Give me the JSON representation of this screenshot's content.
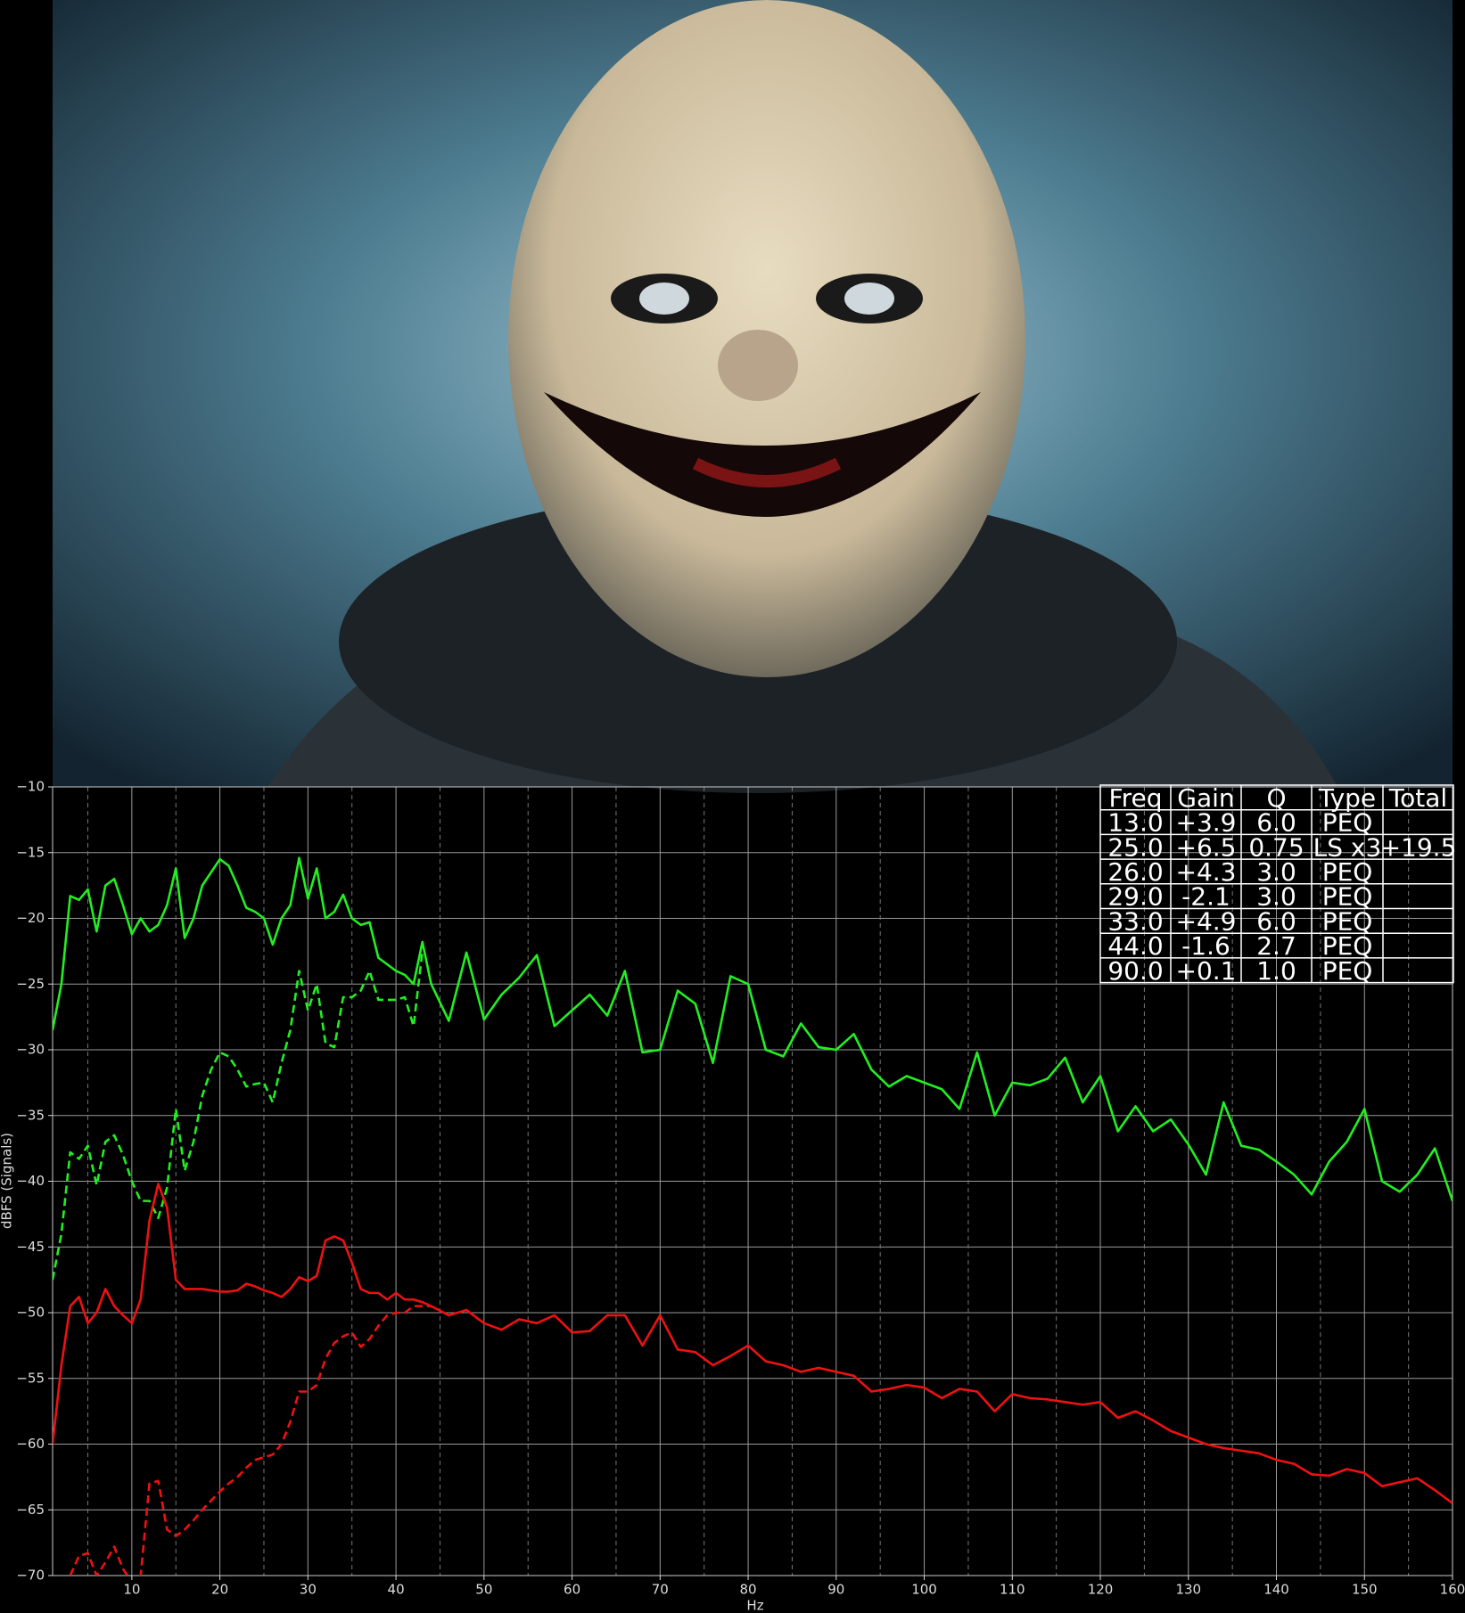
{
  "chart_data": {
    "type": "line",
    "xlabel": "Hz",
    "ylabel": "dBFS (Signals)",
    "xlim": [
      1,
      160
    ],
    "ylim": [
      -70,
      -10
    ],
    "xticks": [
      10,
      20,
      30,
      40,
      50,
      60,
      70,
      80,
      90,
      100,
      110,
      120,
      130,
      140,
      150,
      160
    ],
    "xminorticks": [
      5,
      15,
      25,
      35,
      45,
      55,
      65,
      75,
      85,
      95,
      105,
      115,
      125,
      135,
      145,
      155
    ],
    "yticks": [
      {
        "value": -10,
        "label": "−10"
      },
      {
        "value": -15,
        "label": "−15"
      },
      {
        "value": -20,
        "label": "−20"
      },
      {
        "value": -25,
        "label": "−25"
      },
      {
        "value": -30,
        "label": "−30"
      },
      {
        "value": -35,
        "label": "−35"
      },
      {
        "value": -40,
        "label": "−40"
      },
      {
        "value": -45,
        "label": "−45"
      },
      {
        "value": -50,
        "label": "−50"
      },
      {
        "value": -55,
        "label": "−55"
      },
      {
        "value": -60,
        "label": "−60"
      },
      {
        "value": -65,
        "label": "−65"
      },
      {
        "value": -70,
        "label": "−70"
      }
    ],
    "grid": true,
    "x": [
      1,
      2,
      3,
      4,
      5,
      6,
      7,
      8,
      9,
      10,
      11,
      12,
      13,
      14,
      15,
      16,
      17,
      18,
      19,
      20,
      21,
      22,
      23,
      24,
      25,
      26,
      27,
      28,
      29,
      30,
      31,
      32,
      33,
      34,
      35,
      36,
      37,
      38,
      39,
      40,
      41,
      42,
      43,
      44,
      46,
      48,
      50,
      52,
      54,
      56,
      58,
      60,
      62,
      64,
      66,
      68,
      70,
      72,
      74,
      76,
      78,
      80,
      82,
      84,
      86,
      88,
      90,
      92,
      94,
      96,
      98,
      100,
      102,
      104,
      106,
      108,
      110,
      112,
      114,
      116,
      118,
      120,
      122,
      124,
      126,
      128,
      130,
      132,
      134,
      136,
      138,
      140,
      142,
      144,
      146,
      148,
      150,
      152,
      154,
      156,
      158,
      160
    ],
    "series": [
      {
        "color": "#22ee22",
        "dash": false,
        "values": [
          -28.5,
          -25,
          -18.3,
          -18.6,
          -17.8,
          -21,
          -17.5,
          -17,
          -19,
          -21.2,
          -20,
          -21,
          -20.5,
          -19,
          -16.2,
          -21.5,
          -20,
          -17.5,
          -16.5,
          -15.5,
          -16,
          -17.5,
          -19.2,
          -19.5,
          -20,
          -22,
          -20,
          -19,
          -15.4,
          -18.5,
          -16.2,
          -20,
          -19.5,
          -18.2,
          -20,
          -20.5,
          -20.3,
          -23,
          -23.5,
          -24,
          -24.3,
          -25,
          -21.8,
          -25,
          -27.8,
          -22.6,
          -27.7,
          -25.8,
          -24.5,
          -22.8,
          -28.2,
          -27,
          -25.8,
          -27.4,
          -24,
          -30.2,
          -30,
          -25.5,
          -26.5,
          -31,
          -24.4,
          -25,
          -30,
          -30.5,
          -28,
          -29.8,
          -30,
          -28.8,
          -31.5,
          -32.8,
          -32,
          -32.5,
          -33,
          -34.5,
          -30.2,
          -35,
          -32.5,
          -32.7,
          -32.2,
          -30.6,
          -34,
          -32,
          -36.2,
          -34.3,
          -36.2,
          -35.3,
          -37.2,
          -39.5,
          -34,
          -37.3,
          -37.6,
          -38.5,
          -39.5,
          -41,
          -38.5,
          -37,
          -34.5,
          -40,
          -40.8,
          -39.5,
          -37.5,
          -41.5
        ]
      },
      {
        "color": "#22ee22",
        "dash": true,
        "values": [
          -47.5,
          -44,
          -37.8,
          -38.3,
          -37.3,
          -40.3,
          -37,
          -36.5,
          -38,
          -40,
          -41.5,
          -41.5,
          -42.8,
          -40.5,
          -34.5,
          -39.2,
          -37,
          -33.5,
          -31.5,
          -30.2,
          -30.5,
          -31.5,
          -32.8,
          -32.6,
          -32.5,
          -34,
          -31,
          -28.5,
          -24,
          -27,
          -25,
          -29.5,
          -29.8,
          -26,
          -26,
          -25.5,
          -24,
          -26.2,
          -26.2,
          -26.2,
          -26,
          -28.2,
          -22.5,
          null,
          null,
          null,
          null,
          null,
          null,
          null,
          null,
          null,
          null,
          null,
          null,
          null,
          null,
          null,
          null,
          null,
          null,
          null,
          null,
          null,
          null,
          null,
          null,
          null,
          null,
          null,
          null,
          null,
          null,
          null,
          null,
          null,
          null,
          null,
          null,
          null,
          null,
          null,
          null,
          null,
          null,
          null,
          null,
          null,
          null,
          null,
          null,
          null,
          null,
          null,
          null,
          null,
          null,
          null,
          null,
          null,
          null,
          null
        ]
      },
      {
        "color": "#ee1111",
        "dash": false,
        "values": [
          -60,
          -54,
          -49.5,
          -48.8,
          -50.8,
          -50,
          -48.2,
          -49.5,
          -50.2,
          -50.8,
          -49,
          -43,
          -40.2,
          -42,
          -47.5,
          -48.2,
          -48.2,
          -48.2,
          -48.3,
          -48.4,
          -48.4,
          -48.3,
          -47.8,
          -48,
          -48.3,
          -48.5,
          -48.8,
          -48.2,
          -47.3,
          -47.6,
          -47.2,
          -44.5,
          -44.2,
          -44.5,
          -46.2,
          -48.2,
          -48.5,
          -48.5,
          -49,
          -48.5,
          -49,
          -49,
          -49.2,
          -49.5,
          -50.2,
          -49.8,
          -50.8,
          -51.3,
          -50.5,
          -50.8,
          -50.2,
          -51.5,
          -51.4,
          -50.2,
          -50.2,
          -52.5,
          -50.2,
          -52.8,
          -53,
          -54,
          -53.3,
          -52.5,
          -53.7,
          -54,
          -54.5,
          -54.2,
          -54.5,
          -54.8,
          -56,
          -55.8,
          -55.5,
          -55.7,
          -56.5,
          -55.8,
          -56,
          -57.5,
          -56.2,
          -56.5,
          -56.6,
          -56.8,
          -57,
          -56.8,
          -58,
          -57.5,
          -58.2,
          -59,
          -59.5,
          -60,
          -60.3,
          -60.5,
          -60.7,
          -61.2,
          -61.5,
          -62.3,
          -62.4,
          -61.9,
          -62.2,
          -63.2,
          -62.9,
          -62.6,
          -63.5,
          -64.5
        ]
      },
      {
        "color": "#ee1111",
        "dash": true,
        "values": [
          null,
          null,
          -70,
          -68.5,
          -68.3,
          -70,
          -69,
          -67.8,
          -69.5,
          -70.5,
          -70,
          -63,
          -62.8,
          -66.5,
          -67,
          -66.5,
          -65.8,
          -65,
          -64.3,
          -63.6,
          -63,
          -62.5,
          -61.8,
          -61.2,
          -61,
          -60.8,
          -60,
          -58.3,
          -56,
          -56,
          -55.5,
          -53.5,
          -52.3,
          -51.8,
          -51.5,
          -52.6,
          -52,
          -51,
          -50.2,
          -50,
          -50,
          -49.5,
          -49.5,
          -49.5,
          null,
          null,
          null,
          null,
          null,
          null,
          null,
          null,
          null,
          null,
          null,
          null,
          null,
          null,
          null,
          null,
          null,
          null,
          null,
          null,
          null,
          null,
          null,
          null,
          null,
          null,
          null,
          null,
          null,
          null,
          null,
          null,
          null,
          null,
          null,
          null,
          null,
          null,
          null,
          null,
          null,
          null,
          null,
          null,
          null,
          null,
          null,
          null,
          null,
          null,
          null,
          null,
          null,
          null,
          null,
          null,
          null,
          null
        ]
      }
    ]
  },
  "table": {
    "header": [
      "Freq",
      "Gain",
      "Q",
      "Type",
      "Total"
    ],
    "rows": [
      [
        "13.0",
        "+3.9",
        "6.0",
        "PEQ",
        null
      ],
      [
        "25.0",
        "+6.5",
        "0.75",
        "LS x3",
        "+19.5"
      ],
      [
        "26.0",
        "+4.3",
        "3.0",
        "PEQ",
        null
      ],
      [
        "29.0",
        "-2.1",
        "3.0",
        "PEQ",
        null
      ],
      [
        "33.0",
        "+4.9",
        "6.0",
        "PEQ",
        null
      ],
      [
        "44.0",
        "-1.6",
        "2.7",
        "PEQ",
        null
      ],
      [
        "90.0",
        "+0.1",
        "1.0",
        "PEQ",
        null
      ]
    ]
  }
}
